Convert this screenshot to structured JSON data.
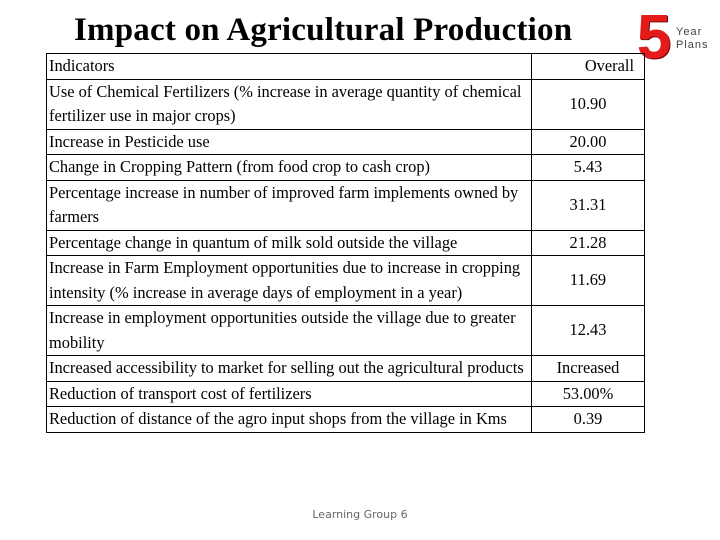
{
  "slide": {
    "title": "Impact on Agricultural Production",
    "footer": "Learning Group 6"
  },
  "logo": {
    "number": "5",
    "line1": "Year",
    "line2": "Plans",
    "accent_color": "#e51b1b"
  },
  "table": {
    "header": {
      "indicator": "Indicators",
      "value": "Overall"
    },
    "rows": [
      {
        "indicator": "Use of Chemical Fertilizers (% increase in average quantity of chemical fertilizer use in major crops)",
        "value": "10.90"
      },
      {
        "indicator": "Increase in Pesticide use",
        "value": "20.00"
      },
      {
        "indicator": "Change in Cropping Pattern (from food crop to cash crop)",
        "value": "5.43"
      },
      {
        "indicator": "Percentage increase in number of improved farm implements owned by farmers",
        "value": "31.31"
      },
      {
        "indicator": "Percentage change in quantum of milk sold outside the village",
        "value": "21.28"
      },
      {
        "indicator": "Increase in Farm Employment opportunities due to increase in cropping intensity (% increase in average days of employment in a year)",
        "value": "11.69"
      },
      {
        "indicator": "Increase in employment opportunities outside the village due to greater mobility",
        "value": "12.43"
      },
      {
        "indicator": "Increased accessibility to market for selling out the agricultural products",
        "value": "Increased"
      },
      {
        "indicator": "Reduction of transport cost of fertilizers",
        "value": "53.00%"
      },
      {
        "indicator": "Reduction of distance of the agro input shops from the village in Kms",
        "value": "0.39"
      }
    ]
  }
}
